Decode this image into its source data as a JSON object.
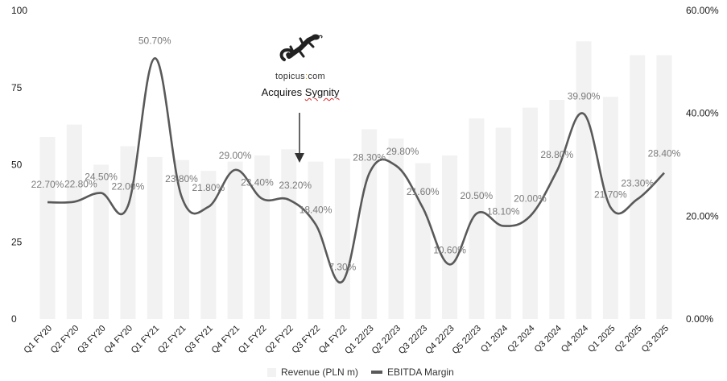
{
  "chart_data": {
    "type": "bar+line",
    "title": "",
    "categories": [
      "Q1 FY20",
      "Q2 FY20",
      "Q3 FY20",
      "Q4 FY20",
      "Q1 FY21",
      "Q2 FY21",
      "Q3 FY21",
      "Q4 FY21",
      "Q1 FY22",
      "Q2 FY22",
      "Q3 FY22",
      "Q4 FY22",
      "Q1 22/23",
      "Q2 22/23",
      "Q3 22/23",
      "Q4 22/23",
      "Q5 22/23",
      "Q1 2024",
      "Q2 2024",
      "Q3 2024",
      "Q4 2024",
      "Q1 2025",
      "Q2 2025",
      "Q3 2025"
    ],
    "series": [
      {
        "name": "Revenue (PLN m)",
        "type": "bar",
        "axis": "left",
        "color": "#f2f2f2",
        "values": [
          59,
          63,
          50,
          56,
          52.5,
          51.5,
          48,
          51,
          53,
          55,
          51,
          52,
          61.5,
          58.5,
          50.5,
          53,
          65,
          62,
          68.5,
          71,
          90,
          72,
          85.5,
          85.5
        ]
      },
      {
        "name": "EBITDA Margin",
        "type": "line",
        "axis": "right",
        "color": "#595959",
        "values": [
          22.7,
          22.8,
          24.5,
          22.0,
          50.7,
          23.8,
          21.8,
          29.0,
          23.4,
          23.2,
          18.4,
          7.3,
          28.3,
          29.8,
          21.6,
          10.6,
          20.5,
          18.1,
          20.0,
          28.8,
          39.9,
          21.7,
          23.3,
          28.4
        ],
        "labels": [
          "22.70%",
          "22.80%",
          "24.50%",
          "22.00%",
          "50.70%",
          "23.80%",
          "21.80%",
          "29.00%",
          "23.40%",
          "23.20%",
          "18.40%",
          "7.30%",
          "28.30%",
          "29.80%",
          "21.60%",
          "10.60%",
          "20.50%",
          "18.10%",
          "20.00%",
          "28.80%",
          "39.90%",
          "21.70%",
          "23.30%",
          "28.40%"
        ]
      }
    ],
    "left_axis": {
      "ylim": [
        0,
        100
      ],
      "ticks": [
        "0",
        "25",
        "50",
        "75",
        "100"
      ]
    },
    "right_axis": {
      "ylim": [
        0,
        60
      ],
      "ticks": [
        "0.00%",
        "20.00%",
        "40.00%",
        "60.00%"
      ]
    },
    "xlabel": "",
    "ylabel": "",
    "grid": false,
    "legend_position": "bottom",
    "annotations": [
      {
        "text": "Acquires Sygnity",
        "logo": "topicus.com",
        "arrow_to": "Q3 FY22"
      }
    ]
  },
  "legend": {
    "revenue": "Revenue (PLN m)",
    "ebitda": "EBITDA Margin"
  },
  "annotation": {
    "logo_left": "topicus",
    "logo_sep": ":",
    "logo_right": "com",
    "caption_prefix": "Acquires ",
    "caption_word": "Sygnity"
  }
}
